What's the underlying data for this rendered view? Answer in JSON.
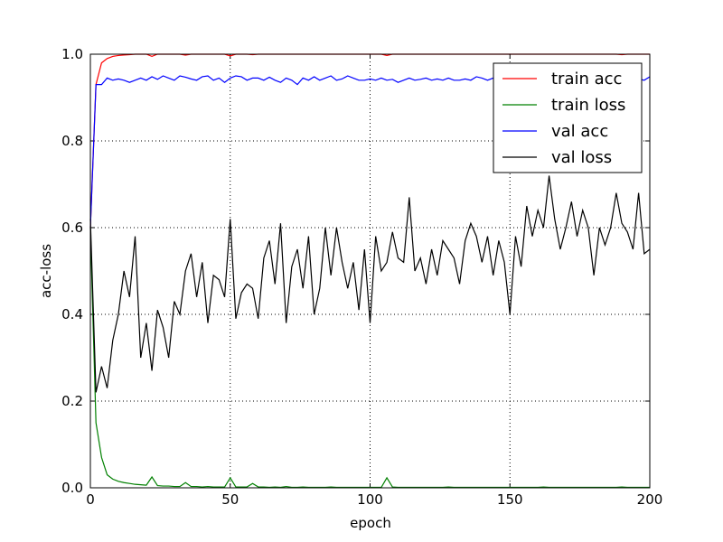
{
  "chart_data": {
    "type": "line",
    "xlabel": "epoch",
    "ylabel": "acc-loss",
    "x": [
      0,
      2,
      4,
      6,
      8,
      10,
      12,
      14,
      16,
      18,
      20,
      22,
      24,
      26,
      28,
      30,
      32,
      34,
      36,
      38,
      40,
      42,
      44,
      46,
      48,
      50,
      52,
      54,
      56,
      58,
      60,
      62,
      64,
      66,
      68,
      70,
      72,
      74,
      76,
      78,
      80,
      82,
      84,
      86,
      88,
      90,
      92,
      94,
      96,
      98,
      100,
      102,
      104,
      106,
      108,
      110,
      112,
      114,
      116,
      118,
      120,
      122,
      124,
      126,
      128,
      130,
      132,
      134,
      136,
      138,
      140,
      142,
      144,
      146,
      148,
      150,
      152,
      154,
      156,
      158,
      160,
      162,
      164,
      166,
      168,
      170,
      172,
      174,
      176,
      178,
      180,
      182,
      184,
      186,
      188,
      190,
      192,
      194,
      196,
      198,
      200
    ],
    "series": [
      {
        "name": "train acc",
        "color": "#ff0000",
        "values": [
          0.6,
          0.93,
          0.98,
          0.99,
          0.995,
          0.997,
          0.998,
          0.999,
          1.0,
          1.0,
          1.0,
          0.995,
          1.0,
          1.0,
          1.0,
          1.0,
          1.0,
          0.998,
          1.0,
          1.0,
          1.0,
          1.0,
          1.0,
          1.0,
          1.0,
          0.996,
          1.0,
          1.0,
          1.0,
          0.999,
          1.0,
          1.0,
          1.0,
          1.0,
          1.0,
          1.0,
          1.0,
          1.0,
          1.0,
          1.0,
          1.0,
          1.0,
          1.0,
          1.0,
          1.0,
          1.0,
          1.0,
          1.0,
          1.0,
          1.0,
          1.0,
          1.0,
          1.0,
          0.997,
          1.0,
          1.0,
          1.0,
          1.0,
          1.0,
          1.0,
          1.0,
          1.0,
          1.0,
          1.0,
          1.0,
          1.0,
          1.0,
          1.0,
          1.0,
          1.0,
          1.0,
          1.0,
          1.0,
          1.0,
          1.0,
          1.0,
          1.0,
          1.0,
          1.0,
          1.0,
          1.0,
          1.0,
          1.0,
          1.0,
          1.0,
          1.0,
          1.0,
          1.0,
          1.0,
          1.0,
          1.0,
          1.0,
          1.0,
          1.0,
          1.0,
          0.999,
          1.0,
          1.0,
          1.0,
          1.0,
          1.0
        ]
      },
      {
        "name": "train loss",
        "color": "#008000",
        "values": [
          0.6,
          0.15,
          0.07,
          0.03,
          0.02,
          0.015,
          0.012,
          0.01,
          0.008,
          0.007,
          0.006,
          0.025,
          0.005,
          0.004,
          0.004,
          0.003,
          0.003,
          0.012,
          0.003,
          0.003,
          0.002,
          0.003,
          0.002,
          0.002,
          0.002,
          0.023,
          0.002,
          0.002,
          0.002,
          0.01,
          0.002,
          0.002,
          0.001,
          0.002,
          0.001,
          0.003,
          0.001,
          0.001,
          0.002,
          0.001,
          0.001,
          0.001,
          0.001,
          0.002,
          0.001,
          0.001,
          0.001,
          0.001,
          0.001,
          0.001,
          0.001,
          0.001,
          0.001,
          0.023,
          0.002,
          0.001,
          0.001,
          0.001,
          0.001,
          0.001,
          0.001,
          0.001,
          0.001,
          0.001,
          0.002,
          0.001,
          0.001,
          0.001,
          0.001,
          0.001,
          0.001,
          0.001,
          0.001,
          0.001,
          0.001,
          0.001,
          0.001,
          0.001,
          0.001,
          0.001,
          0.001,
          0.002,
          0.001,
          0.001,
          0.001,
          0.001,
          0.001,
          0.001,
          0.001,
          0.001,
          0.001,
          0.001,
          0.001,
          0.001,
          0.001,
          0.002,
          0.001,
          0.001,
          0.001,
          0.001,
          0.001
        ]
      },
      {
        "name": "val acc",
        "color": "#0000ff",
        "values": [
          0.6,
          0.93,
          0.93,
          0.945,
          0.94,
          0.943,
          0.94,
          0.935,
          0.94,
          0.945,
          0.94,
          0.948,
          0.942,
          0.95,
          0.945,
          0.94,
          0.95,
          0.947,
          0.943,
          0.94,
          0.948,
          0.95,
          0.94,
          0.945,
          0.935,
          0.945,
          0.95,
          0.948,
          0.94,
          0.945,
          0.945,
          0.94,
          0.947,
          0.94,
          0.935,
          0.945,
          0.94,
          0.93,
          0.945,
          0.94,
          0.948,
          0.94,
          0.945,
          0.95,
          0.94,
          0.943,
          0.95,
          0.945,
          0.94,
          0.94,
          0.943,
          0.94,
          0.945,
          0.94,
          0.942,
          0.935,
          0.94,
          0.945,
          0.94,
          0.942,
          0.945,
          0.94,
          0.943,
          0.94,
          0.945,
          0.94,
          0.94,
          0.943,
          0.94,
          0.948,
          0.945,
          0.94,
          0.945,
          0.94,
          0.945,
          0.94,
          0.945,
          0.94,
          0.943,
          0.945,
          0.945,
          0.94,
          0.945,
          0.94,
          0.945,
          0.94,
          0.945,
          0.94,
          0.945,
          0.94,
          0.943,
          0.945,
          0.94,
          0.945,
          0.94,
          0.945,
          0.94,
          0.94,
          0.943,
          0.94,
          0.948
        ]
      },
      {
        "name": "val loss",
        "color": "#000000",
        "values": [
          0.62,
          0.22,
          0.28,
          0.23,
          0.34,
          0.4,
          0.5,
          0.44,
          0.58,
          0.3,
          0.38,
          0.27,
          0.41,
          0.37,
          0.3,
          0.43,
          0.4,
          0.5,
          0.54,
          0.44,
          0.52,
          0.38,
          0.49,
          0.48,
          0.44,
          0.62,
          0.39,
          0.45,
          0.47,
          0.46,
          0.39,
          0.53,
          0.57,
          0.47,
          0.61,
          0.38,
          0.51,
          0.55,
          0.46,
          0.58,
          0.4,
          0.46,
          0.6,
          0.49,
          0.6,
          0.52,
          0.46,
          0.52,
          0.41,
          0.55,
          0.38,
          0.58,
          0.5,
          0.52,
          0.59,
          0.53,
          0.52,
          0.67,
          0.5,
          0.53,
          0.47,
          0.55,
          0.49,
          0.57,
          0.55,
          0.53,
          0.47,
          0.57,
          0.61,
          0.58,
          0.52,
          0.58,
          0.49,
          0.57,
          0.52,
          0.4,
          0.58,
          0.51,
          0.65,
          0.58,
          0.64,
          0.6,
          0.72,
          0.62,
          0.55,
          0.6,
          0.66,
          0.58,
          0.64,
          0.6,
          0.49,
          0.6,
          0.56,
          0.6,
          0.68,
          0.61,
          0.59,
          0.55,
          0.68,
          0.54,
          0.55
        ]
      }
    ],
    "xlim": [
      0,
      200
    ],
    "xticks": [
      0,
      50,
      100,
      150,
      200
    ],
    "ylim": [
      0,
      1
    ],
    "yticks": [
      {
        "value": 0,
        "label": "0.0"
      },
      0.2,
      0.4,
      0.6,
      0.8,
      {
        "value": 1,
        "label": "1.0"
      }
    ],
    "grid": true,
    "legend": "upper-right"
  }
}
